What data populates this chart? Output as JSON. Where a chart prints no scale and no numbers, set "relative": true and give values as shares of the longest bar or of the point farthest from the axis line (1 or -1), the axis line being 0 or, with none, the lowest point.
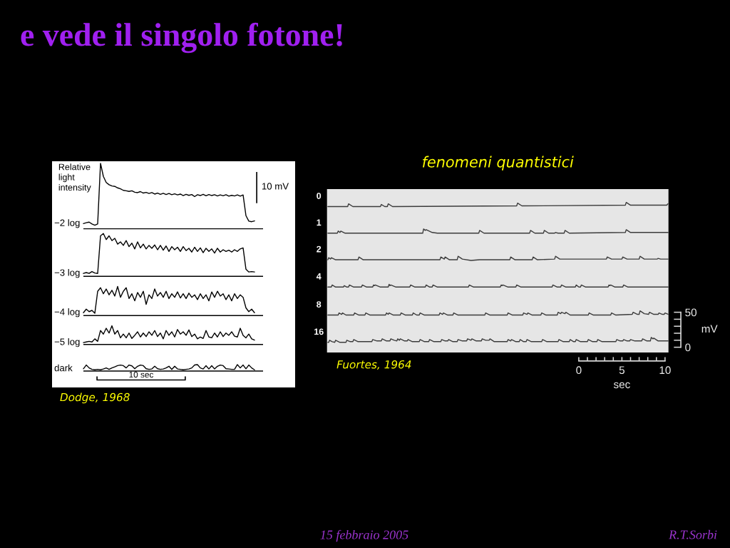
{
  "chart_data": [
    {
      "type": "other",
      "title": "e vede il singolo fotone!",
      "annotations": [
        "15 febbraio 2005",
        "R.T.Sorbi"
      ]
    },
    {
      "type": "line",
      "relative": true,
      "categories": [
        null,
        null,
        null,
        null,
        null,
        null,
        null,
        null,
        null,
        null,
        null,
        null,
        null,
        null,
        null,
        null,
        null,
        null,
        null,
        null,
        null,
        null,
        null,
        null,
        null,
        null,
        null,
        null,
        null,
        null,
        null,
        null,
        null,
        null,
        null,
        null,
        null,
        null,
        null,
        null,
        null,
        null,
        null,
        null,
        null,
        null,
        null,
        null,
        null,
        null,
        null,
        null,
        null,
        null,
        null,
        null,
        null,
        null,
        null,
        null,
        null,
        null,
        null,
        null
      ],
      "series": [
        {
          "name": "−2 log",
          "color": "#000000",
          "values": [
            0.71,
            0.714,
            0.717,
            0.708,
            0.702,
            0.708,
            1.0,
            0.937,
            0.908,
            0.897,
            0.891,
            0.889,
            0.882,
            0.877,
            0.87,
            0.868,
            0.865,
            0.868,
            0.861,
            0.859,
            0.864,
            0.857,
            0.86,
            0.855,
            0.859,
            0.852,
            0.857,
            0.851,
            0.856,
            0.85,
            0.855,
            0.849,
            0.853,
            0.848,
            0.852,
            0.845,
            0.851,
            0.846,
            0.85,
            0.84,
            0.849,
            0.845,
            0.851,
            0.844,
            0.85,
            0.845,
            0.849,
            0.843,
            0.848,
            0.844,
            0.849,
            0.842,
            0.846,
            0.843,
            0.848,
            0.842,
            0.848,
            0.748,
            0.722,
            0.719,
            0.723,
            null,
            null,
            null
          ]
        },
        {
          "name": "−3 log",
          "color": "#000000",
          "values": [
            0.47,
            0.474,
            0.47,
            0.479,
            0.472,
            0.47,
            0.651,
            0.662,
            0.633,
            0.651,
            0.628,
            0.639,
            0.611,
            0.622,
            0.605,
            0.628,
            0.599,
            0.616,
            0.588,
            0.622,
            0.593,
            0.611,
            0.588,
            0.605,
            0.591,
            0.607,
            0.584,
            0.605,
            0.582,
            0.602,
            0.576,
            0.599,
            0.584,
            0.596,
            0.576,
            0.599,
            0.58,
            0.591,
            0.573,
            0.596,
            0.576,
            0.593,
            0.57,
            0.591,
            0.576,
            0.588,
            0.568,
            0.591,
            0.573,
            0.584,
            0.576,
            0.582,
            0.573,
            0.584,
            0.576,
            0.588,
            0.593,
            0.49,
            0.477,
            0.479,
            0.477,
            null,
            null,
            null
          ]
        },
        {
          "name": "−4 log",
          "color": "#000000",
          "values": [
            0.281,
            0.298,
            0.286,
            0.292,
            0.278,
            0.384,
            0.401,
            0.372,
            0.395,
            0.367,
            0.389,
            0.361,
            0.407,
            0.355,
            0.384,
            0.401,
            0.349,
            0.372,
            0.338,
            0.378,
            0.355,
            0.384,
            0.321,
            0.367,
            0.349,
            0.395,
            0.361,
            0.378,
            0.355,
            0.384,
            0.349,
            0.372,
            0.355,
            0.381,
            0.352,
            0.372,
            0.349,
            0.375,
            0.355,
            0.367,
            0.344,
            0.372,
            0.349,
            0.367,
            0.338,
            0.381,
            0.355,
            0.384,
            0.361,
            0.372,
            0.344,
            0.367,
            0.338,
            0.372,
            0.349,
            0.367,
            0.355,
            0.304,
            0.286,
            0.298,
            0.281,
            null,
            null,
            null
          ]
        },
        {
          "name": "−5 log",
          "color": "#000000",
          "values": [
            0.137,
            0.14,
            0.143,
            0.14,
            0.155,
            0.143,
            0.195,
            0.178,
            0.206,
            0.183,
            0.218,
            0.178,
            0.195,
            0.16,
            0.178,
            0.16,
            0.183,
            0.157,
            0.172,
            0.189,
            0.164,
            0.183,
            0.166,
            0.189,
            0.172,
            0.195,
            0.166,
            0.183,
            0.155,
            0.195,
            0.172,
            0.189,
            0.164,
            0.2,
            0.178,
            0.189,
            0.172,
            0.198,
            0.166,
            0.178,
            0.155,
            0.164,
            0.157,
            0.195,
            0.164,
            0.16,
            0.183,
            0.164,
            0.189,
            0.166,
            0.183,
            0.172,
            0.189,
            0.168,
            0.164,
            0.206,
            0.172,
            0.16,
            0.178,
            0.155,
            0.149,
            null,
            null,
            null
          ]
        },
        {
          "name": "dark",
          "color": "#000000",
          "values": [
            0.011,
            0.029,
            0.015,
            0.008,
            0.006,
            0.008,
            0.006,
            0.01,
            0.015,
            0.008,
            0.015,
            0.02,
            0.026,
            0.029,
            0.026,
            0.015,
            0.029,
            0.025,
            0.011,
            0.023,
            0.029,
            0.026,
            0.011,
            0.008,
            0.01,
            0.023,
            0.011,
            0.008,
            0.01,
            0.015,
            0.023,
            0.008,
            0.023,
            0.01,
            0.008,
            0.006,
            0.008,
            0.01,
            0.015,
            0.029,
            0.031,
            0.015,
            0.01,
            0.026,
            0.01,
            0.026,
            0.01,
            0.023,
            0.029,
            0.026,
            0.011,
            0.01,
            0.008,
            0.008,
            0.031,
            0.015,
            0.029,
            0.011,
            0.029,
            0.015,
            0.006,
            null,
            null,
            null
          ]
        }
      ],
      "ref_lines": [
        {
          "axis": "y",
          "value": 0.685,
          "color": "#000000"
        },
        {
          "axis": "y",
          "value": 0.456,
          "color": "#000000"
        },
        {
          "axis": "y",
          "value": 0.267,
          "color": "#000000"
        },
        {
          "axis": "y",
          "value": 0.128,
          "color": "#000000"
        },
        {
          "axis": "y",
          "value": 0.0,
          "color": "#000000"
        }
      ],
      "annotations": [
        "Relative light intensity",
        "10 mV",
        "10 sec",
        "Dodge, 1968"
      ]
    },
    {
      "type": "line",
      "title": "fenomeni quantistici",
      "xlabel": "sec",
      "ylabel": "mV",
      "xlim": [
        -29.2,
        10.4
      ],
      "ylim": [
        -7.5,
        226
      ],
      "xticks": [
        0,
        {
          "value": 1,
          "label": null
        },
        {
          "value": 2,
          "label": null
        },
        {
          "value": 3,
          "label": null
        },
        {
          "value": 4,
          "label": null
        },
        5,
        {
          "value": 6,
          "label": null
        },
        {
          "value": 7,
          "label": null
        },
        {
          "value": 8,
          "label": null
        },
        {
          "value": 9,
          "label": null
        },
        10
      ],
      "yticks": [
        0,
        {
          "value": 10,
          "label": null
        },
        {
          "value": 20,
          "label": null
        },
        {
          "value": 30,
          "label": null
        },
        {
          "value": 40,
          "label": null
        },
        50
      ],
      "series": [
        {
          "name": "0",
          "color": "#3c3c3c",
          "x": [
            -29.1,
            -26.8,
            -26.7,
            -26.2,
            -23.0,
            -22.9,
            -22.5,
            -22.2,
            -22.1,
            -21.6,
            -7.2,
            -7.1,
            -6.6,
            5.4,
            5.5,
            6.0,
            10.2,
            10.35
          ],
          "values": [
            201,
            201,
            205,
            201,
            201,
            204,
            201,
            201,
            205,
            201,
            202,
            206,
            202,
            203,
            207,
            203,
            203,
            205
          ]
        },
        {
          "name": "1",
          "color": "#3c3c3c",
          "x": [
            -29.1,
            -28.0,
            -27.9,
            -27.7,
            -27.6,
            -27.1,
            -18.1,
            -18.0,
            -17.8,
            -17.7,
            -17.0,
            -16.4,
            -11.6,
            -11.5,
            -11.0,
            -5.7,
            -5.6,
            -5.1,
            -4.1,
            -4.0,
            -3.5,
            -2.8,
            -2.7,
            -2.4,
            -1.7,
            -1.6,
            -1.1,
            5.4,
            5.5,
            6.0,
            10.4
          ],
          "values": [
            163,
            163,
            166,
            164,
            166,
            163,
            163,
            169,
            167,
            168,
            164,
            163,
            163,
            167,
            163,
            163,
            167,
            163,
            163,
            167,
            163,
            163,
            164,
            163,
            163,
            167,
            163,
            164,
            168,
            164,
            164
          ]
        },
        {
          "name": "2",
          "color": "#3c3c3c",
          "x": [
            -29.1,
            -29.0,
            -28.8,
            -28.7,
            -28.2,
            -25.6,
            -25.5,
            -25.0,
            -16.1,
            -16.0,
            -15.6,
            -15.5,
            -15.0,
            -14.1,
            -14.0,
            -13.5,
            -12.5,
            -11.5,
            -8.0,
            -7.9,
            -7.4,
            -5.4,
            -5.3,
            -4.8,
            -2.8,
            -2.7,
            -2.2,
            3.2,
            3.3,
            3.8,
            5.0,
            5.1,
            5.6,
            7.0,
            7.1,
            7.6,
            9.1,
            9.2,
            9.5,
            10.4
          ],
          "values": [
            125,
            128,
            126,
            128,
            125,
            125,
            129,
            125,
            125,
            129,
            126,
            129,
            125,
            125,
            130,
            126,
            124,
            125,
            125,
            129,
            125,
            125,
            129,
            125,
            126,
            130,
            126,
            126,
            129,
            126,
            126,
            129,
            126,
            126,
            130,
            126,
            126,
            127,
            126,
            126
          ]
        },
        {
          "name": "4",
          "color": "#3c3c3c",
          "x": [
            -29.1,
            -28.7,
            -28.6,
            -28.2,
            -27.3,
            -27.2,
            -26.9,
            -26.7,
            -26.6,
            -26.1,
            -25.2,
            -25.1,
            -24.6,
            -23.9,
            -23.8,
            -23.7,
            -23.6,
            -23.0,
            -22.1,
            -22.0,
            -21.9,
            -21.8,
            -21.2,
            -19.6,
            -19.5,
            -19.0,
            -17.8,
            -17.7,
            -17.3,
            -17.0,
            -16.9,
            -16.4,
            -12.8,
            -12.7,
            -12.2,
            -9.1,
            -9.0,
            -8.9,
            -8.8,
            -8.2,
            -7.3,
            -7.2,
            -6.7,
            -3.1,
            -3.0,
            -2.5,
            -2.1,
            -2.0,
            -1.5,
            -0.4,
            -0.3,
            0.0,
            0.2,
            0.3,
            0.8,
            3.4,
            3.5,
            3.6,
            3.7,
            4.2,
            5.1,
            5.2,
            5.7,
            10.4
          ],
          "values": [
            86,
            86,
            89,
            86,
            86,
            88,
            86,
            86,
            89,
            86,
            86,
            89,
            86,
            86,
            89,
            88,
            89,
            86,
            86,
            90,
            88,
            89,
            86,
            86,
            89,
            86,
            86,
            89,
            86,
            86,
            89,
            86,
            86,
            89,
            86,
            86,
            89,
            88,
            89,
            86,
            86,
            89,
            86,
            86,
            89,
            86,
            86,
            89,
            86,
            86,
            89,
            86,
            86,
            89,
            86,
            86,
            89,
            88,
            89,
            86,
            86,
            89,
            86,
            86
          ]
        },
        {
          "name": "8",
          "color": "#3c3c3c",
          "x": [
            -29.1,
            -27.9,
            -27.8,
            -27.5,
            -27.4,
            -27.0,
            -26.1,
            -26.0,
            -25.5,
            -24.8,
            -24.7,
            -24.2,
            -22.4,
            -22.3,
            -22.1,
            -22.0,
            -21.5,
            -20.7,
            -20.6,
            -20.1,
            -19.3,
            -19.2,
            -18.8,
            -18.5,
            -18.4,
            -17.9,
            -16.2,
            -16.1,
            -15.8,
            -15.7,
            -15.2,
            -14.6,
            -14.5,
            -14.0,
            -10.9,
            -10.8,
            -10.3,
            -8.3,
            -8.2,
            -7.7,
            -6.5,
            -6.4,
            -6.0,
            -5.9,
            -5.4,
            -4.4,
            -4.3,
            -3.8,
            -2.5,
            -2.4,
            -2.1,
            -2.0,
            -1.6,
            -1.5,
            -1.0,
            1.1,
            1.2,
            1.7,
            3.7,
            3.8,
            4.3,
            6.2,
            6.3,
            6.8,
            7.0,
            7.1,
            7.6,
            8.1,
            8.2,
            8.7,
            9.2,
            9.3,
            9.7,
            9.9,
            10.0,
            10.4
          ],
          "values": [
            46,
            46,
            49,
            47,
            49,
            46,
            46,
            49,
            46,
            46,
            49,
            46,
            46,
            49,
            47,
            49,
            46,
            46,
            49,
            46,
            46,
            49,
            46,
            46,
            49,
            46,
            46,
            49,
            47,
            49,
            46,
            46,
            49,
            46,
            46,
            49,
            46,
            46,
            49,
            46,
            46,
            49,
            47,
            49,
            46,
            46,
            49,
            46,
            46,
            50,
            48,
            50,
            48,
            50,
            46,
            46,
            49,
            46,
            46,
            49,
            46,
            47,
            50,
            47,
            47,
            52,
            48,
            47,
            50,
            47,
            47,
            49,
            47,
            47,
            49,
            47
          ]
        },
        {
          "name": "16",
          "color": "#3c3c3c",
          "x": [
            -29.1,
            -29.0,
            -28.9,
            -28.6,
            -28.3,
            -28.2,
            -27.7,
            -27.0,
            -26.9,
            -26.5,
            -26.2,
            -26.1,
            -25.6,
            -24.0,
            -23.9,
            -23.4,
            -22.9,
            -22.8,
            -22.3,
            -21.9,
            -21.8,
            -21.4,
            -21.1,
            -21.0,
            -20.8,
            -20.7,
            -20.2,
            -19.9,
            -19.8,
            -19.3,
            -18.5,
            -18.4,
            -17.9,
            -17.4,
            -17.3,
            -16.8,
            -16.0,
            -15.9,
            -15.5,
            -15.2,
            -15.1,
            -14.6,
            -14.1,
            -14.0,
            -13.5,
            -13.0,
            -12.9,
            -12.5,
            -12.4,
            -11.9,
            -11.3,
            -11.2,
            -10.8,
            -10.4,
            -10.3,
            -9.8,
            -8.3,
            -8.2,
            -7.9,
            -7.8,
            -7.3,
            -6.9,
            -6.8,
            -6.4,
            -6.1,
            -6.0,
            -5.5,
            -4.3,
            -4.2,
            -3.7,
            -2.4,
            -2.3,
            -1.8,
            -1.1,
            -1.0,
            -0.6,
            -0.4,
            -0.3,
            0.2,
            1.0,
            1.1,
            1.6,
            2.1,
            2.2,
            2.7,
            4.3,
            4.4,
            4.8,
            5.1,
            5.2,
            5.6,
            5.9,
            6.0,
            6.5,
            7.3,
            7.4,
            7.9,
            8.3,
            8.4,
            8.6,
            8.7,
            9.2,
            10.4
          ],
          "values": [
            7,
            7,
            10,
            8,
            7,
            10,
            7,
            7,
            10,
            8,
            8,
            11,
            8,
            8,
            11,
            9,
            9,
            12,
            9,
            9,
            12,
            10,
            9,
            12,
            10,
            12,
            9,
            9,
            11,
            8,
            8,
            11,
            8,
            8,
            11,
            8,
            8,
            11,
            9,
            9,
            11,
            8,
            8,
            11,
            9,
            9,
            12,
            10,
            12,
            9,
            9,
            12,
            10,
            10,
            12,
            8,
            8,
            11,
            9,
            11,
            8,
            8,
            11,
            8,
            8,
            11,
            8,
            8,
            11,
            8,
            8,
            11,
            8,
            8,
            11,
            8,
            8,
            11,
            8,
            8,
            11,
            8,
            8,
            11,
            8,
            8,
            11,
            9,
            9,
            11,
            9,
            9,
            11,
            9,
            9,
            12,
            9,
            9,
            14,
            12,
            13,
            9,
            9
          ]
        }
      ],
      "annotations": [
        "Fuortes, 1964"
      ]
    }
  ]
}
